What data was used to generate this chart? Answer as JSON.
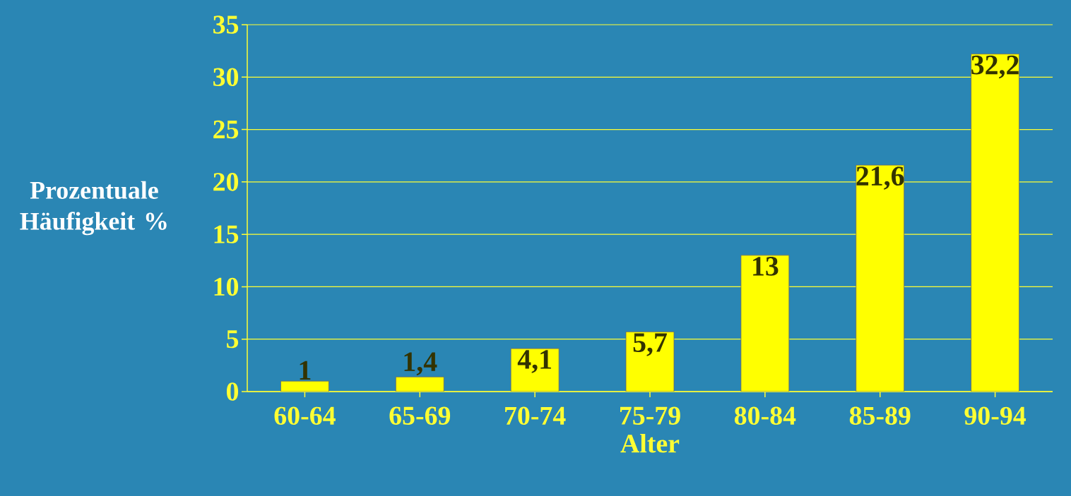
{
  "chart_data": {
    "type": "bar",
    "xlabel": "Alter",
    "ylabel": "Prozentuale Häufigkeit %",
    "categories": [
      "60-64",
      "65-69",
      "70-74",
      "75-79",
      "80-84",
      "85-89",
      "90-94"
    ],
    "values": [
      1,
      1.4,
      4.1,
      5.7,
      13,
      21.6,
      32.2
    ],
    "value_labels": [
      "1",
      "1,4",
      "4,1",
      "5,7",
      "13",
      "21,6",
      "32,2"
    ],
    "color": "#ffff00",
    "ylim": [
      0,
      35
    ],
    "yticks": [
      0,
      5,
      10,
      15,
      20,
      25,
      30,
      35
    ],
    "grid": "y"
  }
}
